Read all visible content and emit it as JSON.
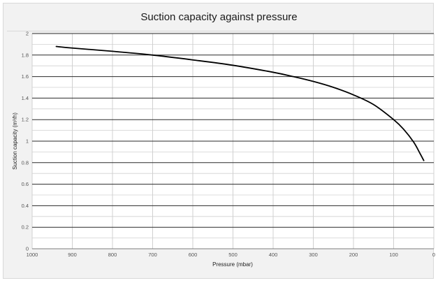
{
  "chart_data": {
    "type": "line",
    "title": "Suction capacity against pressure",
    "xlabel": "Pressure (mbar)",
    "ylabel": "Suction capacity (m³/h)",
    "x_reversed": true,
    "xlim": [
      1000,
      0
    ],
    "ylim": [
      0,
      2
    ],
    "x_ticks": [
      1000,
      900,
      800,
      700,
      600,
      500,
      400,
      300,
      200,
      100,
      0
    ],
    "y_ticks": [
      "0",
      "0.2",
      "0.4",
      "0.6",
      "0.8",
      "1",
      "1.2",
      "1.4",
      "1.6",
      "1.8",
      "2"
    ],
    "grid": {
      "horizontal_major": true,
      "horizontal_minor": true,
      "vertical": true
    },
    "series": [
      {
        "color": "#000000",
        "x": [
          940,
          900,
          800,
          700,
          600,
          500,
          400,
          350,
          300,
          250,
          200,
          150,
          100,
          75,
          50,
          35,
          25
        ],
        "y": [
          1.88,
          1.865,
          1.835,
          1.8,
          1.755,
          1.705,
          1.64,
          1.6,
          1.555,
          1.5,
          1.43,
          1.34,
          1.2,
          1.11,
          0.99,
          0.89,
          0.82
        ]
      }
    ]
  }
}
